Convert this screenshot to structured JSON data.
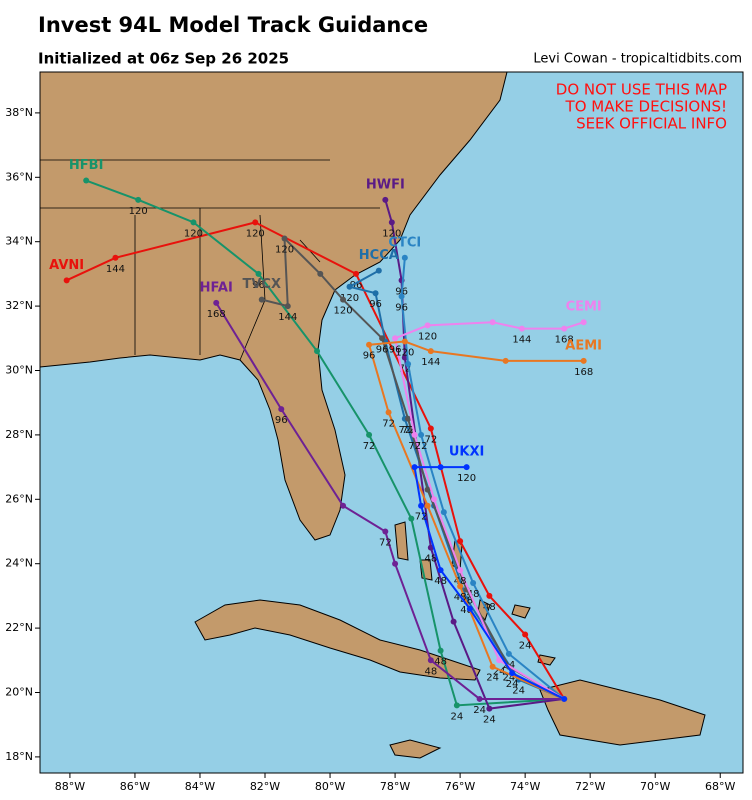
{
  "chart_data": {
    "type": "track",
    "title": "Invest 94L Model Track Guidance",
    "subtitle": "Initialized at 06z Sep 26 2025",
    "credit": "Levi Cowan - tropicaltidbits.com",
    "warning": [
      "DO NOT USE THIS MAP",
      "TO MAKE DECISIONS!",
      "SEEK OFFICIAL INFO"
    ],
    "xlim": [
      -88.92,
      -67.3
    ],
    "ylim": [
      17.5,
      39.27
    ],
    "xticks": [
      {
        "value": -88,
        "label": "88°W"
      },
      {
        "value": -86,
        "label": "86°W"
      },
      {
        "value": -84,
        "label": "84°W"
      },
      {
        "value": -82,
        "label": "82°W"
      },
      {
        "value": -80,
        "label": "80°W"
      },
      {
        "value": -78,
        "label": "78°W"
      },
      {
        "value": -76,
        "label": "76°W"
      },
      {
        "value": -74,
        "label": "74°W"
      },
      {
        "value": -72,
        "label": "72°W"
      },
      {
        "value": -70,
        "label": "70°W"
      },
      {
        "value": -68,
        "label": "68°W"
      }
    ],
    "yticks": [
      {
        "value": 18,
        "label": "18°N"
      },
      {
        "value": 20,
        "label": "20°N"
      },
      {
        "value": 22,
        "label": "22°N"
      },
      {
        "value": 24,
        "label": "24°N"
      },
      {
        "value": 26,
        "label": "26°N"
      },
      {
        "value": 28,
        "label": "28°N"
      },
      {
        "value": 30,
        "label": "30°N"
      },
      {
        "value": 32,
        "label": "32°N"
      },
      {
        "value": 34,
        "label": "34°N"
      },
      {
        "value": 36,
        "label": "36°N"
      },
      {
        "value": 38,
        "label": "38°N"
      }
    ],
    "series": [
      {
        "name": "AVNI",
        "color": "#e8120c",
        "lon": [
          -72.8,
          -74.0,
          -75.1,
          -76.0,
          -76.9,
          -79.2,
          -82.3,
          -86.6,
          -88.1
        ],
        "lat": [
          19.8,
          21.8,
          23.0,
          24.7,
          28.2,
          33.0,
          34.6,
          33.5,
          32.8
        ],
        "hours": [
          null,
          24,
          48,
          null,
          72,
          96,
          120,
          144,
          null
        ]
      },
      {
        "name": "HFBI",
        "color": "#17936a",
        "lon": [
          -72.8,
          -76.1,
          -76.6,
          -77.5,
          -78.8,
          -80.4,
          -82.2,
          -84.2,
          -85.9,
          -87.5
        ],
        "lat": [
          19.8,
          19.6,
          21.3,
          25.4,
          28.0,
          30.6,
          33.0,
          34.6,
          35.3,
          35.9
        ],
        "hours": [
          null,
          24,
          48,
          null,
          72,
          null,
          96,
          120,
          120,
          null
        ]
      },
      {
        "name": "HWFI",
        "color": "#5a1a86",
        "lon": [
          -72.8,
          -75.1,
          -76.2,
          -76.9,
          -77.7,
          -77.8,
          -78.1,
          -78.3
        ],
        "lat": [
          19.8,
          19.5,
          22.2,
          24.5,
          30.4,
          32.8,
          34.6,
          35.3
        ],
        "hours": [
          null,
          24,
          null,
          48,
          72,
          96,
          120,
          null
        ]
      },
      {
        "name": "HFAI",
        "color": "#6e2194",
        "lon": [
          -72.8,
          -75.4,
          -76.9,
          -78.0,
          -78.3,
          -79.6,
          -81.5,
          -83.5
        ],
        "lat": [
          19.8,
          19.8,
          21.0,
          24.0,
          25.0,
          25.8,
          28.8,
          32.1
        ],
        "hours": [
          null,
          24,
          48,
          null,
          72,
          null,
          96,
          168
        ]
      },
      {
        "name": "HCCA",
        "color": "#1f6fa8",
        "lon": [
          -72.8,
          -74.2,
          -75.8,
          -76.8,
          -77.7,
          -78.3,
          -78.6,
          -79.4,
          -78.5
        ],
        "lat": [
          19.8,
          20.4,
          22.9,
          25.8,
          28.5,
          30.9,
          32.4,
          32.6,
          33.1
        ],
        "hours": [
          null,
          24,
          48,
          null,
          72,
          null,
          96,
          120,
          null
        ]
      },
      {
        "name": "CTCI",
        "color": "#2a84c4",
        "lon": [
          -72.8,
          -74.5,
          -75.6,
          -76.5,
          -77.2,
          -77.6,
          -77.8,
          -77.7
        ],
        "lat": [
          19.8,
          21.2,
          23.4,
          25.6,
          28.0,
          30.2,
          32.3,
          33.5
        ],
        "hours": [
          null,
          24,
          48,
          null,
          72,
          null,
          96,
          null
        ]
      },
      {
        "name": "TVCX",
        "color": "#555555",
        "lon": [
          -72.8,
          -74.5,
          -75.8,
          -77.0,
          -77.6,
          -78.4,
          -79.6,
          -80.3,
          -81.4,
          -81.3,
          -82.1
        ],
        "lat": [
          19.8,
          20.8,
          23.2,
          26.3,
          28.5,
          31.0,
          32.2,
          33.0,
          34.1,
          32.0,
          32.2
        ],
        "hours": [
          null,
          24,
          48,
          null,
          72,
          96,
          120,
          null,
          120,
          144,
          null
        ]
      },
      {
        "name": "CEMI",
        "color": "#ee82ee",
        "lon": [
          -72.8,
          -74.8,
          -76.0,
          -76.8,
          -77.4,
          -78.0,
          -77.0,
          -75.0,
          -74.1,
          -72.8,
          -72.2
        ],
        "lat": [
          19.8,
          21.0,
          23.8,
          26.0,
          28.0,
          31.0,
          31.4,
          31.5,
          31.3,
          31.3,
          31.5
        ],
        "hours": [
          null,
          24,
          48,
          null,
          72,
          96,
          120,
          null,
          144,
          168,
          null
        ]
      },
      {
        "name": "AEMI",
        "color": "#e87722",
        "lon": [
          -72.8,
          -75.0,
          -76.0,
          -77.0,
          -78.2,
          -78.8,
          -77.7,
          -76.9,
          -74.6,
          -72.2
        ],
        "lat": [
          19.8,
          20.8,
          23.3,
          25.8,
          28.7,
          30.8,
          30.9,
          30.6,
          30.3,
          30.3
        ],
        "hours": [
          null,
          24,
          48,
          null,
          72,
          96,
          120,
          144,
          null,
          168
        ]
      },
      {
        "name": "UKXI",
        "color": "#0033ff",
        "lon": [
          -72.8,
          -74.4,
          -75.7,
          -76.6,
          -77.2,
          -77.4,
          -76.6,
          -75.8
        ],
        "lat": [
          19.8,
          20.6,
          22.6,
          23.8,
          25.8,
          27.0,
          27.0,
          27.0
        ],
        "hours": [
          null,
          24,
          null,
          48,
          72,
          null,
          null,
          120
        ]
      }
    ]
  }
}
